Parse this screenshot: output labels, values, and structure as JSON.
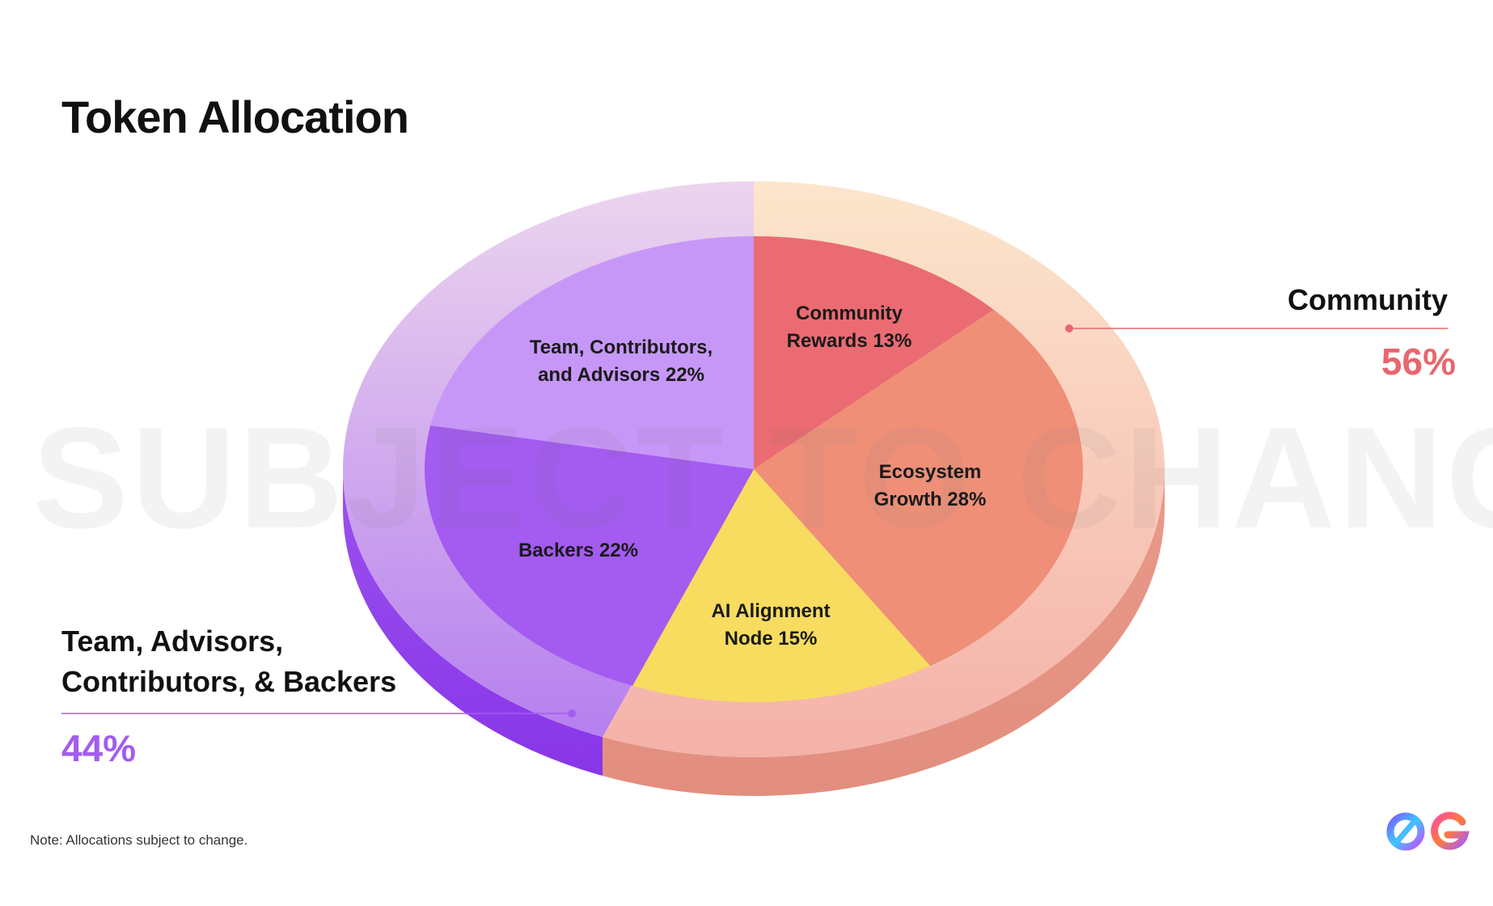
{
  "title": "Token Allocation",
  "watermark": "SUBJECT TO CHANGE",
  "note": "Note: Allocations subject to change.",
  "groups": [
    {
      "name": "Community",
      "value": "56%",
      "color": "#e8676e"
    },
    {
      "name_line1": "Team, Advisors,",
      "name_line2": "Contributors, & Backers",
      "value": "44%",
      "color": "#a35cf0"
    }
  ],
  "chart_data": {
    "type": "pie",
    "title": "Token Allocation",
    "slices": [
      {
        "label_line1": "Community",
        "label_line2": "Rewards 13%",
        "label": "Community Rewards",
        "value": 13,
        "color": "#eb6b72"
      },
      {
        "label_line1": "Ecosystem",
        "label_line2": "Growth 28%",
        "label": "Ecosystem Growth",
        "value": 28,
        "color": "#ef8f78"
      },
      {
        "label_line1": "AI Alignment",
        "label_line2": "Node 15%",
        "label": "AI Alignment Node",
        "value": 15,
        "color": "#f7dc60"
      },
      {
        "label_line1": "Backers 22%",
        "label_line2": "",
        "label": "Backers",
        "value": 22,
        "color": "#a35bf0"
      },
      {
        "label_line1": "Team, Contributors,",
        "label_line2": "and Advisors 22%",
        "label": "Team, Contributors, and Advisors",
        "value": 22,
        "color": "#c797f8"
      }
    ],
    "outer_groups": [
      {
        "label": "Community",
        "value": 56
      },
      {
        "label": "Team, Advisors, Contributors, & Backers",
        "value": 44
      }
    ]
  }
}
